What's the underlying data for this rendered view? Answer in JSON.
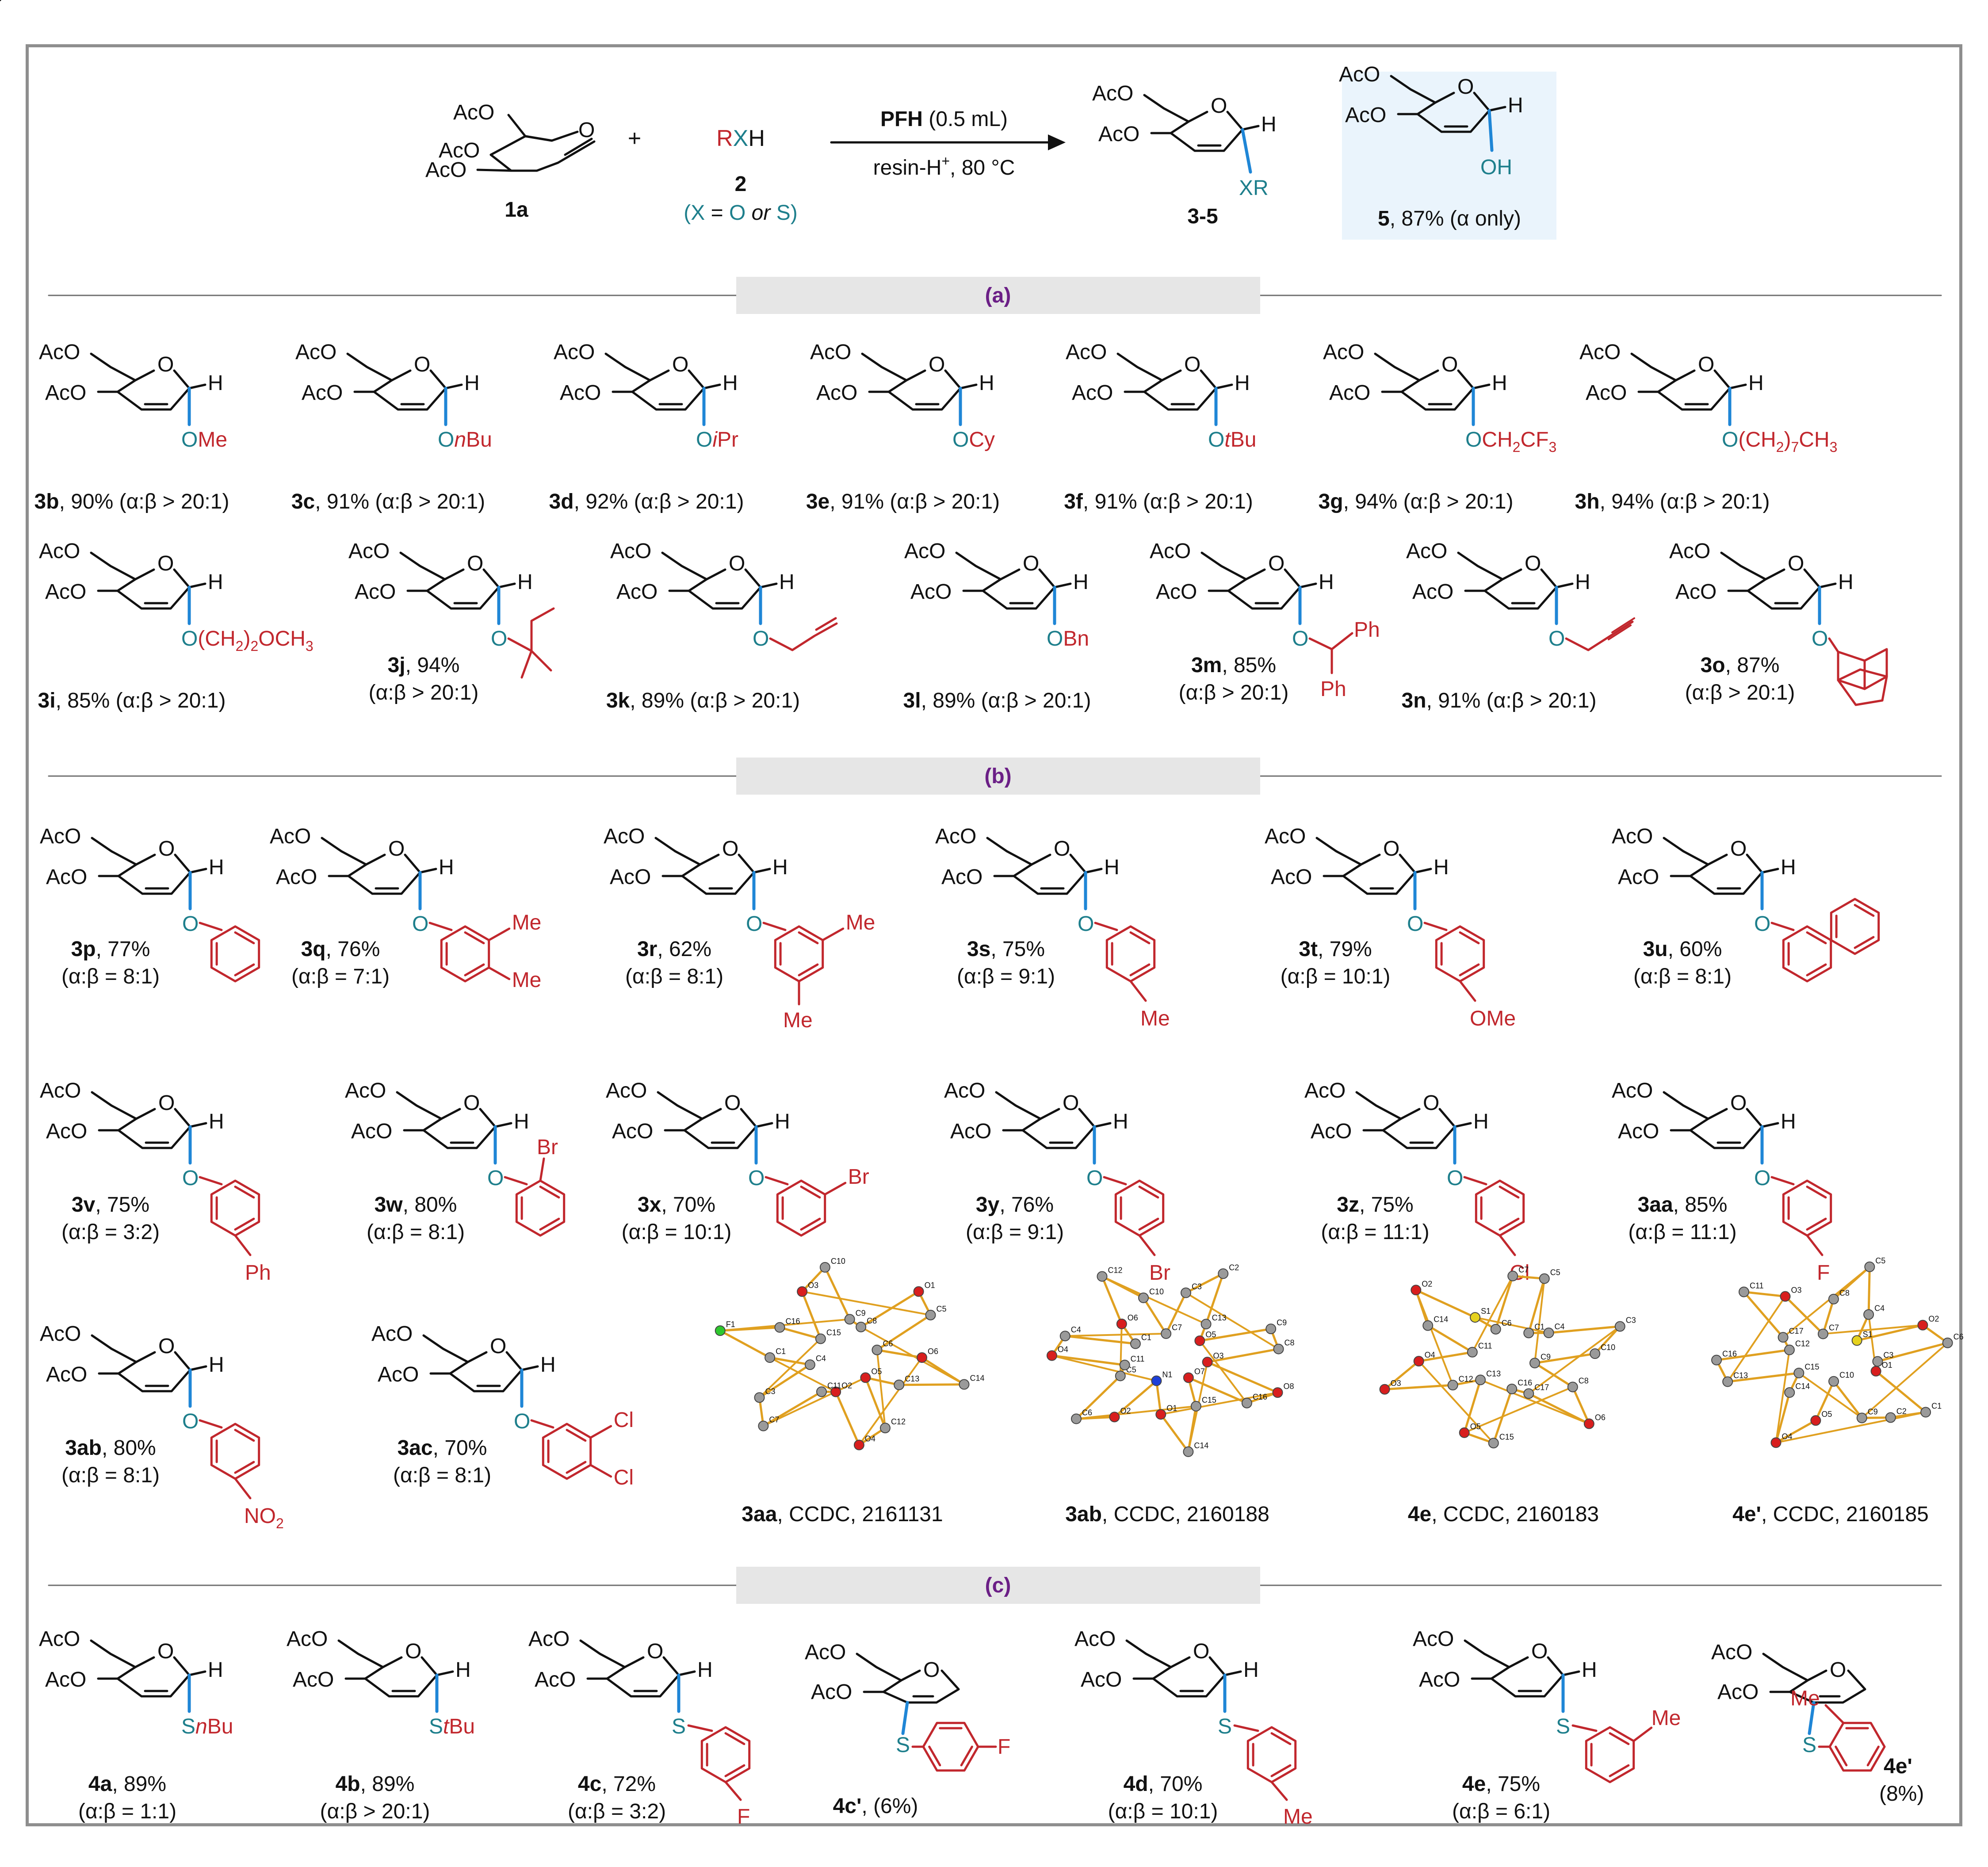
{
  "colors": {
    "red": "#c1272d",
    "blue": "#1f86d6",
    "teal": "#1e7f8c",
    "purple": "#6b1f86",
    "bond": "#111111"
  },
  "scheme": {
    "sm_label": "1a",
    "sm_groups": [
      "AcO",
      "AcO",
      "AcO"
    ],
    "plus": "+",
    "reagent": {
      "r": "R",
      "x": "X",
      "h": "H",
      "number": "2",
      "note_open": "(",
      "note_x": "X",
      "note_eq": " = ",
      "note_o": "O",
      "note_or": " or ",
      "note_s": "S",
      "note_close": ")"
    },
    "arrow_top_bold": "PFH",
    "arrow_top_rest": " (0.5 mL)",
    "arrow_bottom": "resin-H",
    "arrow_bottom_sup": "+",
    "arrow_bottom_rest": ", 80 °C",
    "product_label": "3-5",
    "product_sub": "XR",
    "side_product_label": "5",
    "side_product_yield": ", 87% (α only)",
    "side_product_sub": "OH"
  },
  "sections": {
    "a": "(a)",
    "b": "(b)",
    "c": "(c)"
  },
  "core": {
    "g1": "AcO",
    "g2": "AcO",
    "h": "H",
    "o": "O"
  },
  "row_a1": [
    {
      "id": "3b",
      "sub": "OMe",
      "yield": ", 90% (α:β > 20:1)"
    },
    {
      "id": "3c",
      "sub": "OnBu",
      "yield": ", 91% (α:β > 20:1)"
    },
    {
      "id": "3d",
      "sub": "OiPr",
      "yield": ", 92% (α:β > 20:1)"
    },
    {
      "id": "3e",
      "sub": "OCy",
      "yield": ", 91% (α:β > 20:1)"
    },
    {
      "id": "3f",
      "sub": "OtBu",
      "yield": ", 91% (α:β > 20:1)"
    },
    {
      "id": "3g",
      "sub": "OCH2CF3",
      "yield": ", 94% (α:β > 20:1)"
    },
    {
      "id": "3h",
      "sub": "O(CH2)7CH3",
      "yield": ", 94%  (α:β > 20:1)"
    }
  ],
  "row_a2": [
    {
      "id": "3i",
      "sub": "O(CH2)2OCH3",
      "yield": ", 85% (α:β > 20:1)"
    },
    {
      "id": "3j",
      "yield": ", 94%",
      "ratio": "(α:β > 20:1)"
    },
    {
      "id": "3k",
      "yield": ", 89% (α:β > 20:1)"
    },
    {
      "id": "3l",
      "sub": "OBn",
      "yield": ", 89% (α:β > 20:1)"
    },
    {
      "id": "3m",
      "yield": ", 85%",
      "ratio": "(α:β > 20:1)",
      "ph": "Ph"
    },
    {
      "id": "3n",
      "yield": ", 91% (α:β > 20:1)"
    },
    {
      "id": "3o",
      "yield": ", 87%",
      "ratio": "(α:β > 20:1)"
    }
  ],
  "row_b1": [
    {
      "id": "3p",
      "yield": ", 77%",
      "ratio": "(α:β = 8:1)",
      "subs": []
    },
    {
      "id": "3q",
      "yield": ", 76%",
      "ratio": "(α:β = 7:1)",
      "subs": [
        "Me",
        "Me"
      ]
    },
    {
      "id": "3r",
      "yield": ", 62%",
      "ratio": "(α:β = 8:1)",
      "subs": [
        "Me",
        "Me"
      ]
    },
    {
      "id": "3s",
      "yield": ", 75%",
      "ratio": "(α:β = 9:1)",
      "subs": [
        "Me"
      ]
    },
    {
      "id": "3t",
      "yield": ", 79%",
      "ratio": "(α:β = 10:1)",
      "subs": [
        "OMe"
      ]
    },
    {
      "id": "3u",
      "yield": ", 60%",
      "ratio": "(α:β = 8:1)",
      "subs": []
    }
  ],
  "row_b2": [
    {
      "id": "3v",
      "yield": ", 75%",
      "ratio": "(α:β = 3:2)",
      "subs": [
        "Ph"
      ]
    },
    {
      "id": "3w",
      "yield": ", 80%",
      "ratio": "(α:β = 8:1)",
      "subs": [
        "Br"
      ]
    },
    {
      "id": "3x",
      "yield": ", 70%",
      "ratio": "(α:β = 10:1)",
      "subs": [
        "Br"
      ]
    },
    {
      "id": "3y",
      "yield": ", 76%",
      "ratio": "(α:β = 9:1)",
      "subs": [
        "Br"
      ]
    },
    {
      "id": "3z",
      "yield": ", 75%",
      "ratio": "(α:β = 11:1)",
      "subs": [
        "Cl"
      ]
    },
    {
      "id": "3aa",
      "yield": ", 85%",
      "ratio": "(α:β = 11:1)",
      "subs": [
        "F"
      ]
    }
  ],
  "row_b3": [
    {
      "id": "3ab",
      "yield": ", 80%",
      "ratio": "(α:β = 8:1)",
      "subs": [
        "NO2"
      ]
    },
    {
      "id": "3ac",
      "yield": ", 70%",
      "ratio": "(α:β = 8:1)",
      "subs": [
        "Cl",
        "Cl"
      ]
    }
  ],
  "crystals": [
    {
      "id": "3aa",
      "label": ", CCDC, 2161131",
      "atoms": [
        "O6",
        "C14",
        "C13",
        "O5",
        "C12",
        "O4",
        "O2",
        "C11",
        "C7",
        "C3",
        "C4",
        "C1",
        "F1",
        "C16",
        "C15",
        "O3",
        "C10",
        "C9",
        "C8",
        "O1",
        "C5",
        "C6"
      ]
    },
    {
      "id": "3ab",
      "label": ", CCDC, 2160188",
      "atoms": [
        "O8",
        "C16",
        "O7",
        "C15",
        "C14",
        "O1",
        "N1",
        "O2",
        "C6",
        "C5",
        "C11",
        "O4",
        "C4",
        "C1",
        "O6",
        "C12",
        "C10",
        "C7",
        "C3",
        "C2",
        "C13",
        "O5",
        "C9",
        "C8",
        "O3"
      ]
    },
    {
      "id": "4e",
      "label": ", CCDC, 2160183",
      "atoms": [
        "O6",
        "C17",
        "C16",
        "C15",
        "O5",
        "C13",
        "C12",
        "O3",
        "O4",
        "C11",
        "C14",
        "O2",
        "S1",
        "C6",
        "C7",
        "C5",
        "C1",
        "C4",
        "C3",
        "C10",
        "C9",
        "C8"
      ]
    },
    {
      "id": "4e'",
      "label": ", CCDC, 2160185",
      "atoms": [
        "C9",
        "C10",
        "O5",
        "O4",
        "C14",
        "C15",
        "C13",
        "C16",
        "C12",
        "C17",
        "C11",
        "O3",
        "C7",
        "C8",
        "C5",
        "C4",
        "S1",
        "O2",
        "C6",
        "C3",
        "O1",
        "C1",
        "C2"
      ]
    }
  ],
  "row_c": [
    {
      "id": "4a",
      "yield": ", 89%",
      "ratio": "(α:β = 1:1)",
      "sub": "SnBu"
    },
    {
      "id": "4b",
      "yield": ", 89%",
      "ratio": "(α:β > 20:1)",
      "sub": "StBu"
    },
    {
      "id": "4c",
      "yield": ", 72%",
      "ratio": "(α:β = 3:2)",
      "s": "S",
      "subs": [
        "F"
      ]
    },
    {
      "id": "4c'",
      "yield": ", (6%)",
      "s": "S",
      "subs": [
        "F"
      ]
    },
    {
      "id": "4d",
      "yield": ", 70%",
      "ratio": "(α:β = 10:1)",
      "s": "S",
      "subs": [
        "Me"
      ]
    },
    {
      "id": "4e",
      "yield": ", 75%",
      "ratio": "(α:β = 6:1)",
      "s": "S",
      "subs": [
        "Me"
      ]
    },
    {
      "id": "4e'",
      "yield": "(8%)",
      "s": "S",
      "subs": [
        "Me"
      ]
    }
  ]
}
